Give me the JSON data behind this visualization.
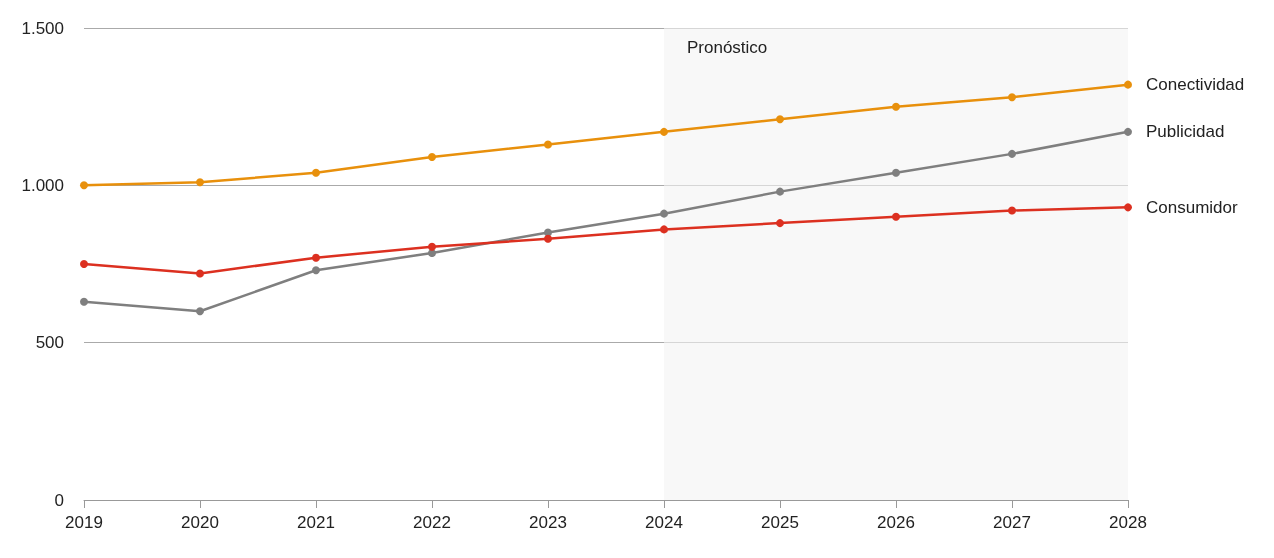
{
  "chart_data": {
    "type": "line",
    "categories": [
      "2019",
      "2020",
      "2021",
      "2022",
      "2023",
      "2024",
      "2025",
      "2026",
      "2027",
      "2028"
    ],
    "series": [
      {
        "name": "Conectividad",
        "color": "#e8900c",
        "values": [
          1000,
          1010,
          1040,
          1090,
          1130,
          1170,
          1210,
          1250,
          1280,
          1320
        ]
      },
      {
        "name": "Publicidad",
        "color": "#7f7f7f",
        "values": [
          630,
          600,
          730,
          785,
          850,
          910,
          980,
          1040,
          1100,
          1170
        ]
      },
      {
        "name": "Consumidor",
        "color": "#dc3020",
        "values": [
          750,
          720,
          770,
          805,
          830,
          860,
          880,
          900,
          920,
          930
        ]
      }
    ],
    "ylim": [
      0,
      1500
    ],
    "yticks": [
      0,
      {
        "value": 500,
        "label": "500"
      },
      {
        "value": 1000,
        "label": "1.000"
      },
      {
        "value": 1500,
        "label": "1.500"
      }
    ],
    "grid": "y",
    "legend": false,
    "marker": "circle",
    "line_style": "solid",
    "bands": [
      {
        "axis": "x",
        "from": "2024",
        "to": "2028",
        "label": "Pronóstico",
        "color": "#f3f3f3"
      }
    ]
  }
}
